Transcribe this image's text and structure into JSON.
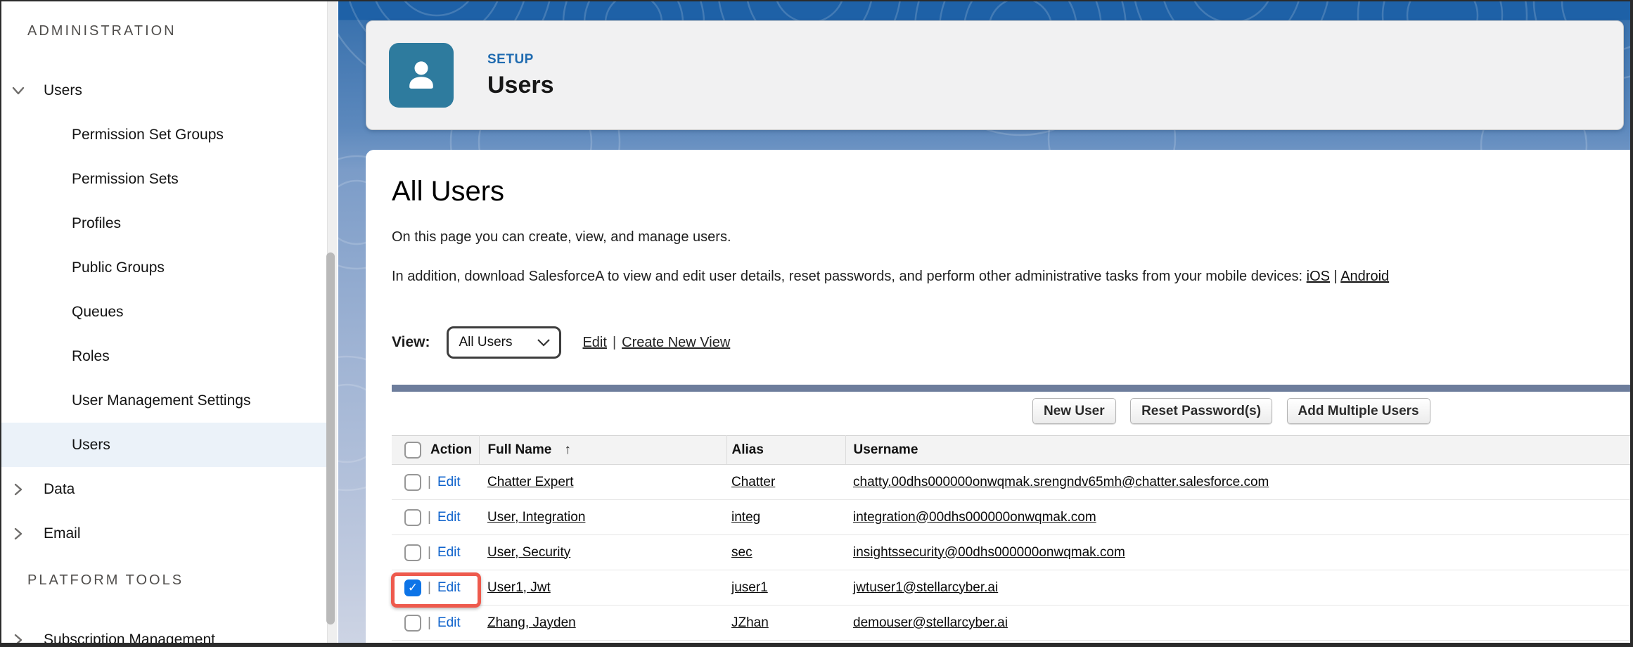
{
  "sidebar": {
    "sections": [
      {
        "title": "ADMINISTRATION",
        "items": [
          {
            "label": "Users",
            "level": 0,
            "chevron": "down",
            "selected": false
          },
          {
            "label": "Permission Set Groups",
            "level": 1
          },
          {
            "label": "Permission Sets",
            "level": 1
          },
          {
            "label": "Profiles",
            "level": 1
          },
          {
            "label": "Public Groups",
            "level": 1
          },
          {
            "label": "Queues",
            "level": 1
          },
          {
            "label": "Roles",
            "level": 1
          },
          {
            "label": "User Management Settings",
            "level": 1
          },
          {
            "label": "Users",
            "level": 1,
            "selected": true
          },
          {
            "label": "Data",
            "level": 0,
            "chevron": "right"
          },
          {
            "label": "Email",
            "level": 0,
            "chevron": "right"
          }
        ]
      },
      {
        "title": "PLATFORM TOOLS",
        "items": [
          {
            "label": "Subscription Management",
            "level": 0,
            "chevron": "right"
          }
        ]
      }
    ]
  },
  "header": {
    "eyebrow": "SETUP",
    "title": "Users",
    "icon": "user-icon",
    "tile_color": "#2e7b9e"
  },
  "main": {
    "title": "All Users",
    "description1": "On this page you can create, view, and manage users.",
    "description2_prefix": "In addition, download SalesforceA to view and edit user details, reset passwords, and perform other administrative tasks from your mobile devices: ",
    "link_ios": "iOS",
    "links_separator": " | ",
    "link_android": "Android",
    "view_label": "View:",
    "view_value": "All Users",
    "view_links": [
      "Edit",
      "Create New View"
    ],
    "view_links_separator": "|",
    "buttons": [
      "New User",
      "Reset Password(s)",
      "Add Multiple Users"
    ],
    "table": {
      "columns": [
        "Action",
        "Full Name",
        "Alias",
        "Username"
      ],
      "sort_column": "Full Name",
      "sort_arrow": "↑",
      "action_separator": "|",
      "rows": [
        {
          "action": "Edit",
          "full_name": "Chatter Expert",
          "alias": "Chatter",
          "username": "chatty.00dhs000000onwqmak.srengndv65mh@chatter.salesforce.com",
          "checked": false,
          "highlighted": false
        },
        {
          "action": "Edit",
          "full_name": "User, Integration",
          "alias": "integ",
          "username": "integration@00dhs000000onwqmak.com",
          "checked": false,
          "highlighted": false
        },
        {
          "action": "Edit",
          "full_name": "User, Security",
          "alias": "sec",
          "username": "insightssecurity@00dhs000000onwqmak.com",
          "checked": false,
          "highlighted": false
        },
        {
          "action": "Edit",
          "full_name": "User1, Jwt",
          "alias": "juser1",
          "username": "jwtuser1@stellarcyber.ai",
          "checked": true,
          "highlighted": true
        },
        {
          "action": "Edit",
          "full_name": "Zhang, Jayden",
          "alias": "JZhan",
          "username": "demouser@stellarcyber.ai",
          "checked": false,
          "highlighted": false
        }
      ]
    }
  },
  "colors": {
    "accent_blue": "#1e61a7",
    "selected_item_bg": "#ebf2f9",
    "checked_checkbox": "#0d74e7",
    "annotation_highlight": "#ee5a4d",
    "slate_bar": "#6d7d9c",
    "link_blue": "#0f63cc"
  }
}
